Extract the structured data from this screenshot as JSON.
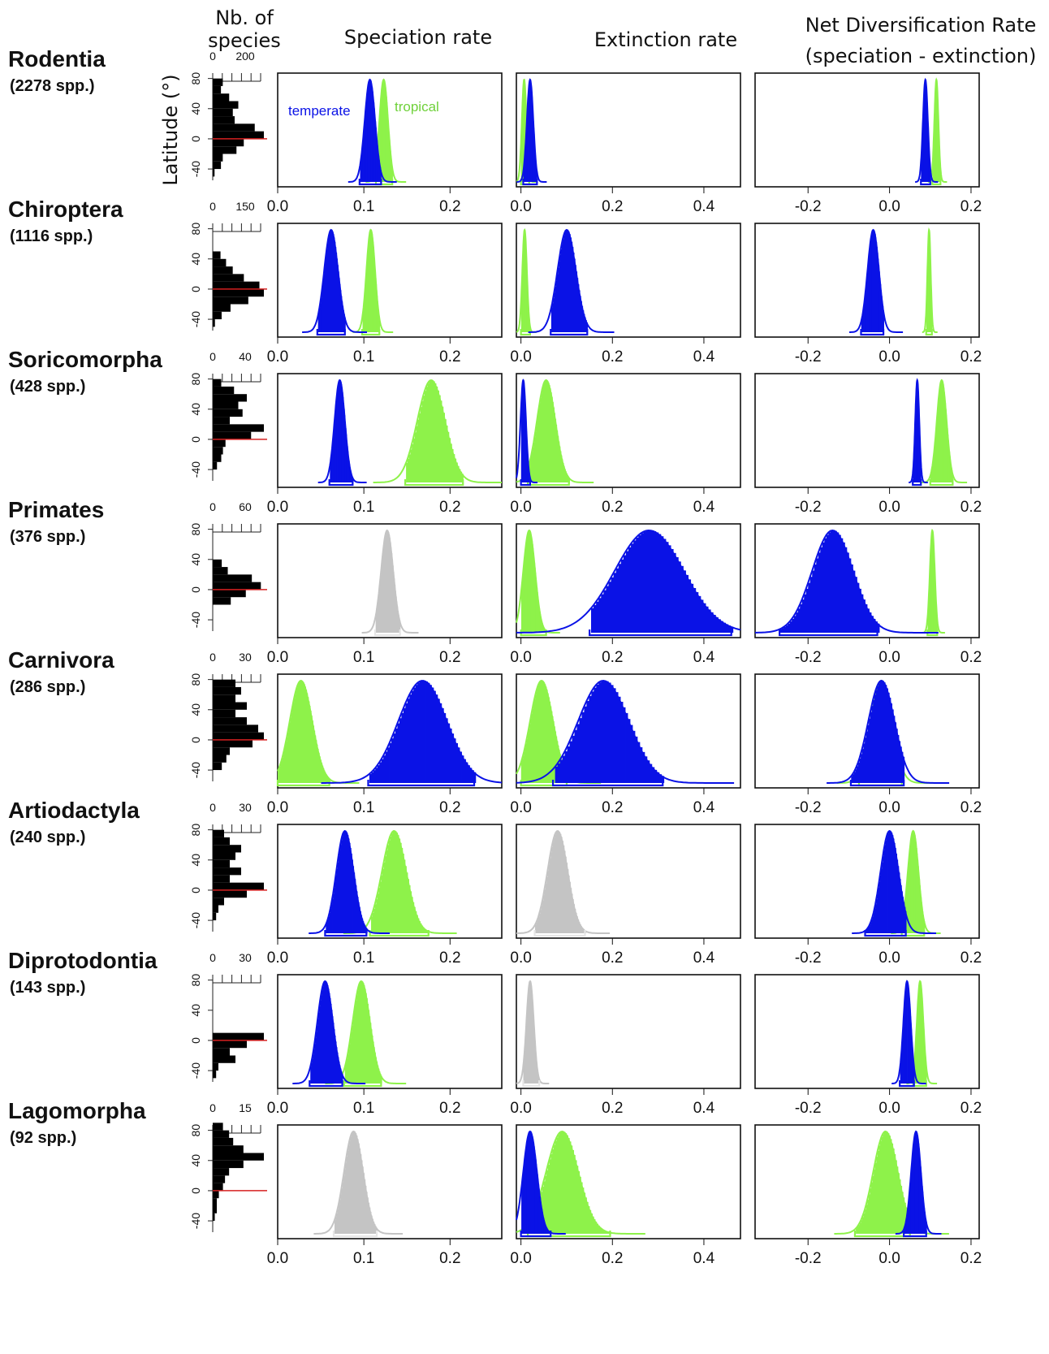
{
  "headers": {
    "nb_species": [
      "Nb. of",
      "species"
    ],
    "speciation": "Speciation rate",
    "extinction": "Extinction rate",
    "net": [
      "Net Diversification Rate",
      "(speciation - extinction)"
    ],
    "latitude": "Latitude (°)"
  },
  "legend": {
    "temperate": "temperate",
    "tropical": "tropical"
  },
  "colors": {
    "temperate": "#0a12e6",
    "tropical": "#8ef24a",
    "pooled": "#c4c4c4",
    "equator": "#d62020",
    "bars": "#000000"
  },
  "axes": {
    "speciation": {
      "xlim": [
        0,
        0.26
      ],
      "ticks": [
        "0.0",
        "0.1",
        "0.2"
      ],
      "tick_values": [
        0,
        0.1,
        0.2
      ]
    },
    "extinction": {
      "xlim": [
        -0.01,
        0.48
      ],
      "ticks": [
        "0.0",
        "0.2",
        "0.4"
      ],
      "tick_values": [
        0,
        0.2,
        0.4
      ]
    },
    "net": {
      "xlim": [
        -0.33,
        0.22
      ],
      "ticks": [
        "-0.2",
        "0.0",
        "0.2"
      ],
      "tick_values": [
        -0.2,
        0,
        0.2
      ]
    },
    "latitude": {
      "ylim": [
        -55,
        85
      ],
      "ticks": [
        "80",
        "40",
        "0",
        "-40"
      ],
      "tick_values": [
        80,
        40,
        0,
        -40
      ]
    }
  },
  "chart_data": {
    "type": "histogram",
    "rows": [
      {
        "taxon": "Rodentia",
        "spp": "(2278 spp.)",
        "species_ticks": [
          "0",
          "200"
        ],
        "species_max": 280,
        "lat_hist": [
          [
            70,
            55
          ],
          [
            60,
            45
          ],
          [
            50,
            90
          ],
          [
            40,
            140
          ],
          [
            30,
            110
          ],
          [
            20,
            120
          ],
          [
            10,
            230
          ],
          [
            0,
            280
          ],
          [
            -10,
            170
          ],
          [
            -20,
            130
          ],
          [
            -30,
            55
          ],
          [
            -40,
            45
          ],
          [
            -50,
            10
          ]
        ],
        "speciation": {
          "temperate": {
            "peak": 0.107,
            "sd": 0.006,
            "hpd": [
              0.095,
              0.12
            ]
          },
          "tropical": {
            "peak": 0.123,
            "sd": 0.005,
            "hpd": [
              0.114,
              0.133
            ]
          }
        },
        "extinction": {
          "temperate": {
            "peak": 0.02,
            "sd": 0.007,
            "hpd": [
              0.005,
              0.035
            ]
          },
          "tropical": {
            "peak": 0.007,
            "sd": 0.005,
            "hpd": [
              0.0,
              0.018
            ]
          }
        },
        "net": {
          "temperate": {
            "peak": 0.088,
            "sd": 0.006,
            "hpd": [
              0.077,
              0.1
            ]
          },
          "tropical": {
            "peak": 0.115,
            "sd": 0.005,
            "hpd": [
              0.105,
              0.125
            ]
          }
        }
      },
      {
        "taxon": "Chiroptera",
        "spp": "(1116 spp.)",
        "species_ticks": [
          "0",
          "150"
        ],
        "species_max": 230,
        "lat_hist": [
          [
            40,
            35
          ],
          [
            30,
            60
          ],
          [
            20,
            90
          ],
          [
            10,
            140
          ],
          [
            0,
            210
          ],
          [
            -10,
            230
          ],
          [
            -20,
            160
          ],
          [
            -30,
            80
          ],
          [
            -40,
            40
          ],
          [
            -50,
            10
          ]
        ],
        "speciation": {
          "temperate": {
            "peak": 0.062,
            "sd": 0.008,
            "hpd": [
              0.046,
              0.078
            ]
          },
          "tropical": {
            "peak": 0.108,
            "sd": 0.005,
            "hpd": [
              0.098,
              0.118
            ]
          }
        },
        "extinction": {
          "temperate": {
            "peak": 0.1,
            "sd": 0.02,
            "hpd": [
              0.065,
              0.145
            ]
          },
          "tropical": {
            "peak": 0.008,
            "sd": 0.005,
            "hpd": [
              0.0,
              0.02
            ]
          }
        },
        "net": {
          "temperate": {
            "peak": -0.04,
            "sd": 0.014,
            "hpd": [
              -0.07,
              -0.015
            ]
          },
          "tropical": {
            "peak": 0.097,
            "sd": 0.004,
            "hpd": [
              0.09,
              0.104
            ]
          }
        }
      },
      {
        "taxon": "Soricomorpha",
        "spp": "(428 spp.)",
        "species_ticks": [
          "0",
          "40"
        ],
        "species_max": 60,
        "lat_hist": [
          [
            70,
            10
          ],
          [
            60,
            25
          ],
          [
            50,
            40
          ],
          [
            40,
            30
          ],
          [
            30,
            35
          ],
          [
            20,
            20
          ],
          [
            10,
            60
          ],
          [
            0,
            45
          ],
          [
            -10,
            15
          ],
          [
            -20,
            12
          ],
          [
            -30,
            10
          ],
          [
            -40,
            5
          ]
        ],
        "speciation": {
          "temperate": {
            "peak": 0.072,
            "sd": 0.006,
            "hpd": [
              0.06,
              0.087
            ]
          },
          "tropical": {
            "peak": 0.178,
            "sd": 0.016,
            "hpd": [
              0.148,
              0.215
            ]
          }
        },
        "extinction": {
          "temperate": {
            "peak": 0.005,
            "sd": 0.006,
            "hpd": [
              0.0,
              0.02
            ]
          },
          "tropical": {
            "peak": 0.055,
            "sd": 0.02,
            "hpd": [
              0.015,
              0.105
            ]
          }
        },
        "net": {
          "temperate": {
            "peak": 0.068,
            "sd": 0.005,
            "hpd": [
              0.057,
              0.077
            ]
          },
          "tropical": {
            "peak": 0.128,
            "sd": 0.012,
            "hpd": [
              0.1,
              0.155
            ]
          }
        }
      },
      {
        "taxon": "Primates",
        "spp": "(376 spp.)",
        "species_ticks": [
          "0",
          "60"
        ],
        "species_max": 85,
        "lat_hist": [
          [
            30,
            15
          ],
          [
            20,
            25
          ],
          [
            10,
            65
          ],
          [
            0,
            80
          ],
          [
            -10,
            55
          ],
          [
            -20,
            30
          ]
        ],
        "speciation": {
          "pooled": {
            "peak": 0.127,
            "sd": 0.007,
            "hpd": [
              0.113,
              0.142
            ]
          }
        },
        "extinction": {
          "temperate": {
            "peak": 0.28,
            "sd": 0.075,
            "hpd": [
              0.15,
              0.46
            ]
          },
          "tropical": {
            "peak": 0.018,
            "sd": 0.013,
            "hpd": [
              0.0,
              0.055
            ]
          }
        },
        "net": {
          "temperate": {
            "peak": -0.14,
            "sd": 0.05,
            "hpd": [
              -0.27,
              -0.03
            ]
          },
          "tropical": {
            "peak": 0.105,
            "sd": 0.006,
            "hpd": [
              0.093,
              0.117
            ]
          }
        }
      },
      {
        "taxon": "Carnivora",
        "spp": "(286 spp.)",
        "species_ticks": [
          "0",
          "30"
        ],
        "species_max": 45,
        "lat_hist": [
          [
            70,
            20
          ],
          [
            60,
            25
          ],
          [
            50,
            20
          ],
          [
            40,
            30
          ],
          [
            30,
            20
          ],
          [
            20,
            30
          ],
          [
            10,
            40
          ],
          [
            0,
            45
          ],
          [
            -10,
            35
          ],
          [
            -20,
            15
          ],
          [
            -30,
            12
          ],
          [
            -40,
            8
          ]
        ],
        "speciation": {
          "temperate": {
            "peak": 0.168,
            "sd": 0.028,
            "hpd": [
              0.105,
              0.228
            ]
          },
          "tropical": {
            "peak": 0.027,
            "sd": 0.013,
            "hpd": [
              0.0,
              0.06
            ]
          }
        },
        "extinction": {
          "temperate": {
            "peak": 0.18,
            "sd": 0.055,
            "hpd": [
              0.07,
              0.31
            ]
          },
          "tropical": {
            "peak": 0.045,
            "sd": 0.025,
            "hpd": [
              0.0,
              0.1
            ]
          }
        },
        "net": {
          "temperate": {
            "peak": -0.02,
            "sd": 0.032,
            "hpd": [
              -0.095,
              0.035
            ]
          },
          "tropical": {
            "peak": -0.02,
            "sd": 0.026,
            "hpd": [
              -0.075,
              0.03
            ]
          }
        }
      },
      {
        "taxon": "Artiodactyla",
        "spp": "(240 spp.)",
        "species_ticks": [
          "0",
          "30"
        ],
        "species_max": 45,
        "lat_hist": [
          [
            70,
            10
          ],
          [
            60,
            15
          ],
          [
            50,
            25
          ],
          [
            40,
            20
          ],
          [
            30,
            15
          ],
          [
            20,
            25
          ],
          [
            10,
            15
          ],
          [
            0,
            45
          ],
          [
            -10,
            30
          ],
          [
            -20,
            10
          ],
          [
            -30,
            5
          ],
          [
            -40,
            3
          ]
        ],
        "speciation": {
          "temperate": {
            "peak": 0.078,
            "sd": 0.01,
            "hpd": [
              0.055,
              0.103
            ]
          },
          "tropical": {
            "peak": 0.135,
            "sd": 0.014,
            "hpd": [
              0.107,
              0.175
            ]
          }
        },
        "extinction": {
          "pooled": {
            "peak": 0.08,
            "sd": 0.022,
            "hpd": [
              0.03,
              0.14
            ]
          }
        },
        "net": {
          "temperate": {
            "peak": 0.0,
            "sd": 0.022,
            "hpd": [
              -0.06,
              0.04
            ]
          },
          "tropical": {
            "peak": 0.058,
            "sd": 0.013,
            "hpd": [
              0.03,
              0.085
            ]
          }
        }
      },
      {
        "taxon": "Diprotodontia",
        "spp": "(143 spp.)",
        "species_ticks": [
          "0",
          "30"
        ],
        "species_max": 45,
        "lat_hist": [
          [
            0,
            45
          ],
          [
            -10,
            30
          ],
          [
            -20,
            15
          ],
          [
            -30,
            20
          ],
          [
            -40,
            5
          ],
          [
            -50,
            3
          ]
        ],
        "speciation": {
          "temperate": {
            "peak": 0.055,
            "sd": 0.009,
            "hpd": [
              0.037,
              0.075
            ]
          },
          "tropical": {
            "peak": 0.097,
            "sd": 0.01,
            "hpd": [
              0.077,
              0.12
            ]
          }
        },
        "extinction": {
          "pooled": {
            "peak": 0.02,
            "sd": 0.008,
            "hpd": [
              0.005,
              0.04
            ]
          }
        },
        "net": {
          "temperate": {
            "peak": 0.043,
            "sd": 0.009,
            "hpd": [
              0.025,
              0.06
            ]
          },
          "tropical": {
            "peak": 0.075,
            "sd": 0.008,
            "hpd": [
              0.058,
              0.09
            ]
          }
        }
      },
      {
        "taxon": "Lagomorpha",
        "spp": "(92 spp.)",
        "species_ticks": [
          "0",
          "15"
        ],
        "species_max": 25,
        "lat_hist": [
          [
            80,
            5
          ],
          [
            70,
            8
          ],
          [
            60,
            10
          ],
          [
            50,
            15
          ],
          [
            40,
            25
          ],
          [
            30,
            15
          ],
          [
            20,
            8
          ],
          [
            10,
            6
          ],
          [
            0,
            5
          ],
          [
            -10,
            3
          ],
          [
            -20,
            2
          ],
          [
            -30,
            2
          ],
          [
            -40,
            1
          ]
        ],
        "speciation": {
          "pooled": {
            "peak": 0.088,
            "sd": 0.011,
            "hpd": [
              0.065,
              0.115
            ]
          }
        },
        "extinction": {
          "temperate": {
            "peak": 0.02,
            "sd": 0.015,
            "hpd": [
              0.0,
              0.065
            ]
          },
          "tropical": {
            "peak": 0.09,
            "sd": 0.035,
            "hpd": [
              0.015,
              0.195
            ]
          }
        },
        "net": {
          "temperate": {
            "peak": 0.065,
            "sd": 0.012,
            "hpd": [
              0.035,
              0.09
            ]
          },
          "tropical": {
            "peak": -0.01,
            "sd": 0.03,
            "hpd": [
              -0.085,
              0.05
            ]
          }
        }
      }
    ]
  }
}
